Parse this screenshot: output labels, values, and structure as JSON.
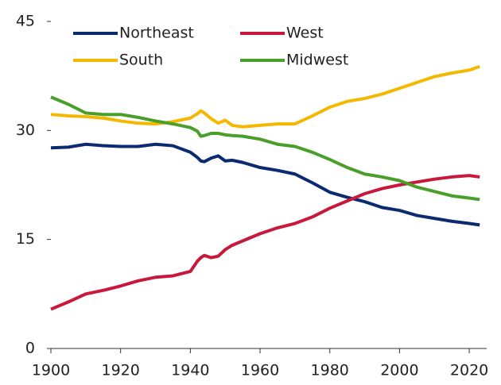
{
  "chart_data": {
    "type": "line",
    "x": [
      1900,
      1905,
      1910,
      1915,
      1920,
      1925,
      1930,
      1935,
      1940,
      1942,
      1943,
      1944,
      1946,
      1948,
      1950,
      1952,
      1955,
      1960,
      1965,
      1970,
      1975,
      1980,
      1985,
      1990,
      1995,
      2000,
      2005,
      2010,
      2015,
      2020,
      2023
    ],
    "series": [
      {
        "name": "Northeast",
        "color": "#0b2a6f",
        "values": [
          27.6,
          27.7,
          28.1,
          27.9,
          27.8,
          27.8,
          28.1,
          27.9,
          27.0,
          26.3,
          25.8,
          25.7,
          26.2,
          26.5,
          25.8,
          25.9,
          25.6,
          24.9,
          24.5,
          24.0,
          22.8,
          21.5,
          20.8,
          20.2,
          19.4,
          19.0,
          18.3,
          17.9,
          17.5,
          17.2,
          17.0
        ]
      },
      {
        "name": "West",
        "color": "#c8183c",
        "values": [
          5.4,
          6.4,
          7.5,
          8.0,
          8.6,
          9.3,
          9.8,
          10.0,
          10.6,
          12.0,
          12.5,
          12.8,
          12.5,
          12.7,
          13.6,
          14.2,
          14.8,
          15.8,
          16.6,
          17.2,
          18.1,
          19.3,
          20.3,
          21.3,
          22.0,
          22.5,
          22.9,
          23.3,
          23.6,
          23.8,
          23.6
        ]
      },
      {
        "name": "South",
        "color": "#f5b800",
        "values": [
          32.2,
          32.0,
          31.9,
          31.7,
          31.3,
          31.0,
          30.9,
          31.2,
          31.7,
          32.3,
          32.7,
          32.4,
          31.6,
          31.0,
          31.4,
          30.7,
          30.5,
          30.7,
          30.9,
          30.9,
          32.0,
          33.2,
          34.0,
          34.4,
          35.0,
          35.8,
          36.6,
          37.4,
          37.9,
          38.3,
          38.8
        ]
      },
      {
        "name": "Midwest",
        "color": "#4a9f2a",
        "values": [
          34.6,
          33.6,
          32.4,
          32.2,
          32.2,
          31.8,
          31.3,
          30.9,
          30.4,
          29.9,
          29.2,
          29.3,
          29.6,
          29.6,
          29.4,
          29.3,
          29.2,
          28.8,
          28.1,
          27.8,
          27.0,
          26.0,
          24.9,
          24.0,
          23.6,
          23.1,
          22.2,
          21.6,
          21.0,
          20.7,
          20.5
        ]
      }
    ],
    "xlim": [
      1900,
      2025
    ],
    "xticks": [
      1900,
      1920,
      1940,
      1960,
      1980,
      2000,
      2020
    ],
    "ylim": [
      0,
      45
    ],
    "yticks": [
      0,
      15,
      30,
      45
    ],
    "grid": false,
    "legend": "upper left"
  }
}
